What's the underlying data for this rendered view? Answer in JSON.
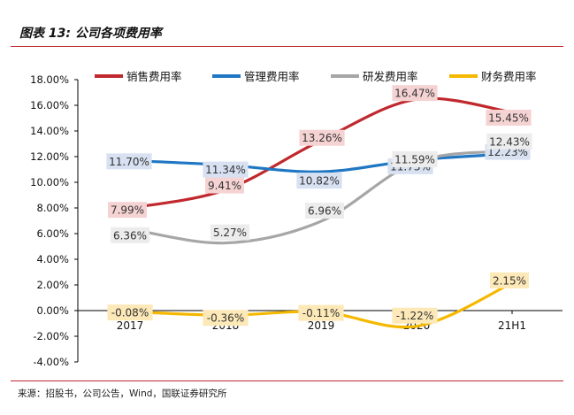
{
  "figure": {
    "title": "图表 13: 公司各项费用率",
    "source": "来源：招股书，公司公告，Wind，国联证券研究所"
  },
  "chart_data": {
    "type": "line",
    "categories": [
      "2017",
      "2018",
      "2019",
      "2020",
      "21H1"
    ],
    "ylim": [
      -4,
      18
    ],
    "yticks": [
      -4,
      -2,
      0,
      2,
      4,
      6,
      8,
      10,
      12,
      14,
      16,
      18
    ],
    "ytick_labels": [
      "-4.00%",
      "-2.00%",
      "0.00%",
      "2.00%",
      "4.00%",
      "6.00%",
      "8.00%",
      "10.00%",
      "12.00%",
      "14.00%",
      "16.00%",
      "18.00%"
    ],
    "legend_position": "top-right",
    "series": [
      {
        "name": "销售费用率",
        "color": "#c0282d",
        "label_bg": "#f6d3d3",
        "values": [
          7.99,
          9.41,
          13.26,
          16.47,
          15.45
        ],
        "labels": [
          "7.99%",
          "9.41%",
          "13.26%",
          "16.47%",
          "15.45%"
        ]
      },
      {
        "name": "管理费用率",
        "color": "#1f77c4",
        "label_bg": "#d7e1f1",
        "values": [
          11.7,
          11.34,
          10.82,
          11.73,
          12.23
        ],
        "labels": [
          "11.70%",
          "11.34%",
          "10.82%",
          "11.73%",
          "12.23%"
        ]
      },
      {
        "name": "研发费用率",
        "color": "#a6a6a6",
        "label_bg": "#ececec",
        "values": [
          6.36,
          5.27,
          6.96,
          11.59,
          12.43
        ],
        "labels": [
          "6.36%",
          "5.27%",
          "6.96%",
          "11.59%",
          "12.43%"
        ]
      },
      {
        "name": "财务费用率",
        "color": "#f5b800",
        "label_bg": "#fde9b8",
        "values": [
          -0.08,
          -0.36,
          -0.11,
          -1.22,
          2.15
        ],
        "labels": [
          "-0.08%",
          "-0.36%",
          "-0.11%",
          "-1.22%",
          "2.15%"
        ]
      }
    ]
  }
}
